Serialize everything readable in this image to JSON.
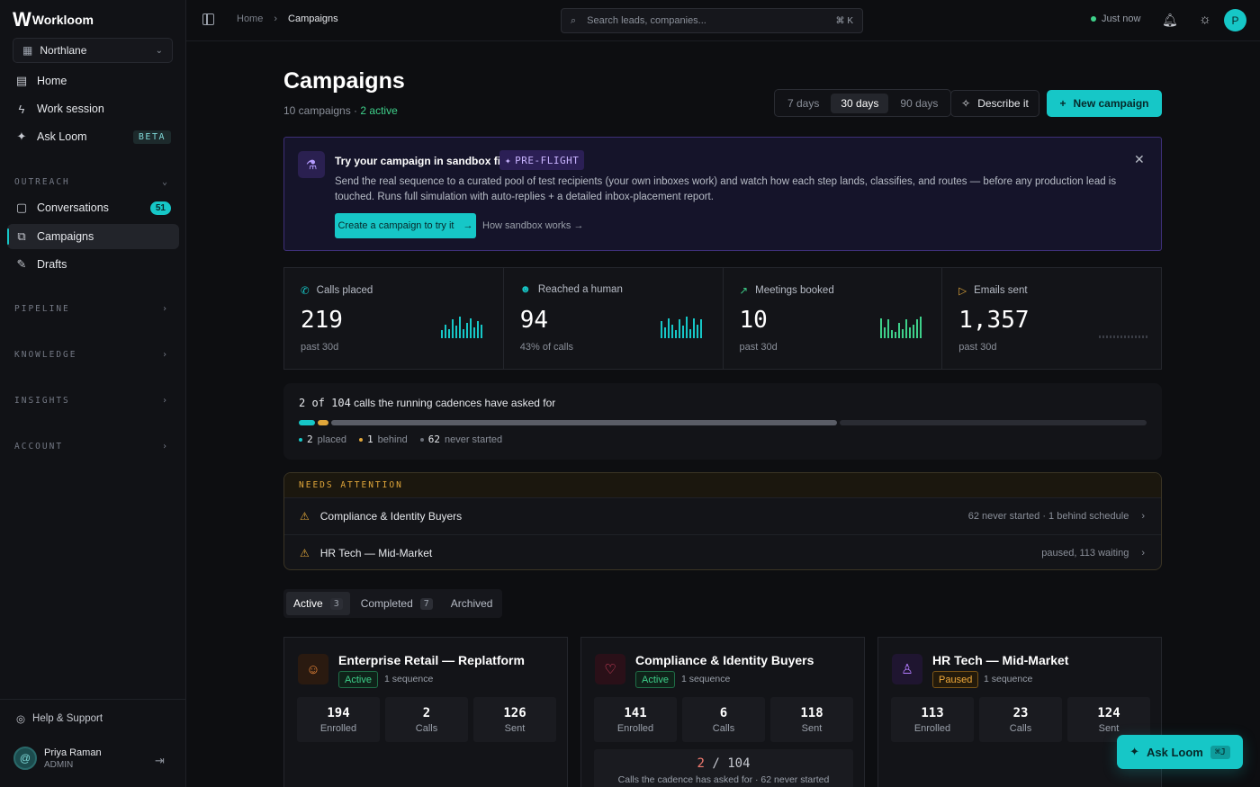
{
  "brand": {
    "mark": "W",
    "name": "Workloom"
  },
  "org": {
    "name": "Northlane"
  },
  "nav": {
    "home": "Home",
    "work_session": "Work session",
    "ask_loom": "Ask Loom",
    "ask_loom_badge": "BETA",
    "outreach": "OUTREACH",
    "conversations": "Conversations",
    "conversations_count": "51",
    "campaigns": "Campaigns",
    "drafts": "Drafts",
    "pipeline": "PIPELINE",
    "knowledge": "KNOWLEDGE",
    "insights": "INSIGHTS",
    "account": "ACCOUNT",
    "help": "Help & Support"
  },
  "user": {
    "name": "Priya Raman",
    "role": "ADMIN",
    "avatar": "@",
    "top_initial": "P"
  },
  "topbar": {
    "crumb_home": "Home",
    "crumb_sep": "›",
    "crumb_current": "Campaigns",
    "search_placeholder": "Search leads, companies...",
    "search_kbd": "⌘ K",
    "status": "Just now"
  },
  "header": {
    "title": "Campaigns",
    "sub_count": "10 campaigns · ",
    "sub_active": "2 active",
    "ranges": [
      "7 days",
      "30 days",
      "90 days"
    ],
    "selected_range": "30 days",
    "describe": "Describe it",
    "new_campaign": "New campaign"
  },
  "sandbox": {
    "title": "Try your campaign in sandbox first",
    "badge": "PRE-FLIGHT",
    "desc": "Send the real sequence to a curated pool of test recipients (your own inboxes work) and watch how each step lands, classifies, and routes — before any production lead is touched. Runs full simulation with auto-replies + a detailed inbox-placement report.",
    "cta": "Create a campaign to try it",
    "link": "How sandbox works →"
  },
  "stats": [
    {
      "label": "Calls placed",
      "value": "219",
      "sub": "past 30d",
      "color": "#16c7c7",
      "bars": [
        5,
        9,
        6,
        12,
        8,
        14,
        6,
        10,
        13,
        7,
        11,
        9
      ]
    },
    {
      "label": "Reached a human",
      "value": "94",
      "sub": "43% of calls",
      "color": "#16c7c7",
      "bars": [
        11,
        7,
        13,
        9,
        5,
        12,
        8,
        14,
        6,
        13,
        9,
        12
      ]
    },
    {
      "label": "Meetings booked",
      "value": "10",
      "sub": "past 30d",
      "color": "#3ed08a",
      "bars": [
        13,
        7,
        12,
        5,
        4,
        10,
        6,
        12,
        7,
        9,
        12,
        14
      ]
    },
    {
      "label": "Emails sent",
      "value": "1,357",
      "sub": "past 30d",
      "color": "#3a3d45",
      "bars": [
        2,
        2,
        2,
        2,
        2,
        2,
        2,
        2,
        2,
        2,
        2,
        2,
        2,
        2
      ]
    }
  ],
  "progress": {
    "title_num": "2 of 104",
    "title_rest": " calls the running cadences have asked for",
    "total": 104,
    "segments": [
      {
        "label": "placed",
        "value": 2,
        "color": "#16c7c7"
      },
      {
        "label": "behind",
        "value": 1,
        "color": "#e0a63a"
      },
      {
        "label": "never started",
        "value": 62,
        "color": "#5a5d66"
      }
    ],
    "legend": [
      {
        "num": "2",
        "label": "placed",
        "color": "#16c7c7"
      },
      {
        "num": "1",
        "label": "behind",
        "color": "#e0a63a"
      },
      {
        "num": "62",
        "label": "never started",
        "color": "#6b6f78"
      }
    ]
  },
  "attention": {
    "heading": "NEEDS ATTENTION",
    "rows": [
      {
        "name": "Compliance & Identity Buyers",
        "meta": "62 never started · 1 behind schedule"
      },
      {
        "name": "HR Tech — Mid-Market",
        "meta": "paused, 113 waiting"
      }
    ]
  },
  "tabs": [
    {
      "label": "Active",
      "count": "3"
    },
    {
      "label": "Completed",
      "count": "7"
    },
    {
      "label": "Archived",
      "count": ""
    }
  ],
  "campaigns": [
    {
      "title": "Enterprise Retail — Replatform",
      "status": "Active",
      "seq": "1 sequence",
      "icon": "users-icon",
      "icon_color": "#f08a3a",
      "icon_bg": "#2a1a10",
      "metrics": [
        {
          "v": "194",
          "l": "Enrolled"
        },
        {
          "v": "2",
          "l": "Calls"
        },
        {
          "v": "126",
          "l": "Sent"
        }
      ]
    },
    {
      "title": "Compliance & Identity Buyers",
      "status": "Active",
      "seq": "1 sequence",
      "icon": "heart-icon",
      "icon_color": "#f04a6a",
      "icon_bg": "#2a1018",
      "metrics": [
        {
          "v": "141",
          "l": "Enrolled"
        },
        {
          "v": "6",
          "l": "Calls"
        },
        {
          "v": "118",
          "l": "Sent"
        }
      ],
      "extra_hl": "2",
      "extra_rest": " / 104",
      "extra_sub": "Calls the cadence has asked for · 62 never started"
    },
    {
      "title": "HR Tech — Mid-Market",
      "status": "Paused",
      "seq": "1 sequence",
      "icon": "badge-icon",
      "icon_color": "#b37bff",
      "icon_bg": "#1f1530",
      "metrics": [
        {
          "v": "113",
          "l": "Enrolled"
        },
        {
          "v": "23",
          "l": "Calls"
        },
        {
          "v": "124",
          "l": "Sent"
        }
      ]
    }
  ],
  "ask_float": {
    "label": "Ask Loom",
    "kbd": "⌘J"
  }
}
